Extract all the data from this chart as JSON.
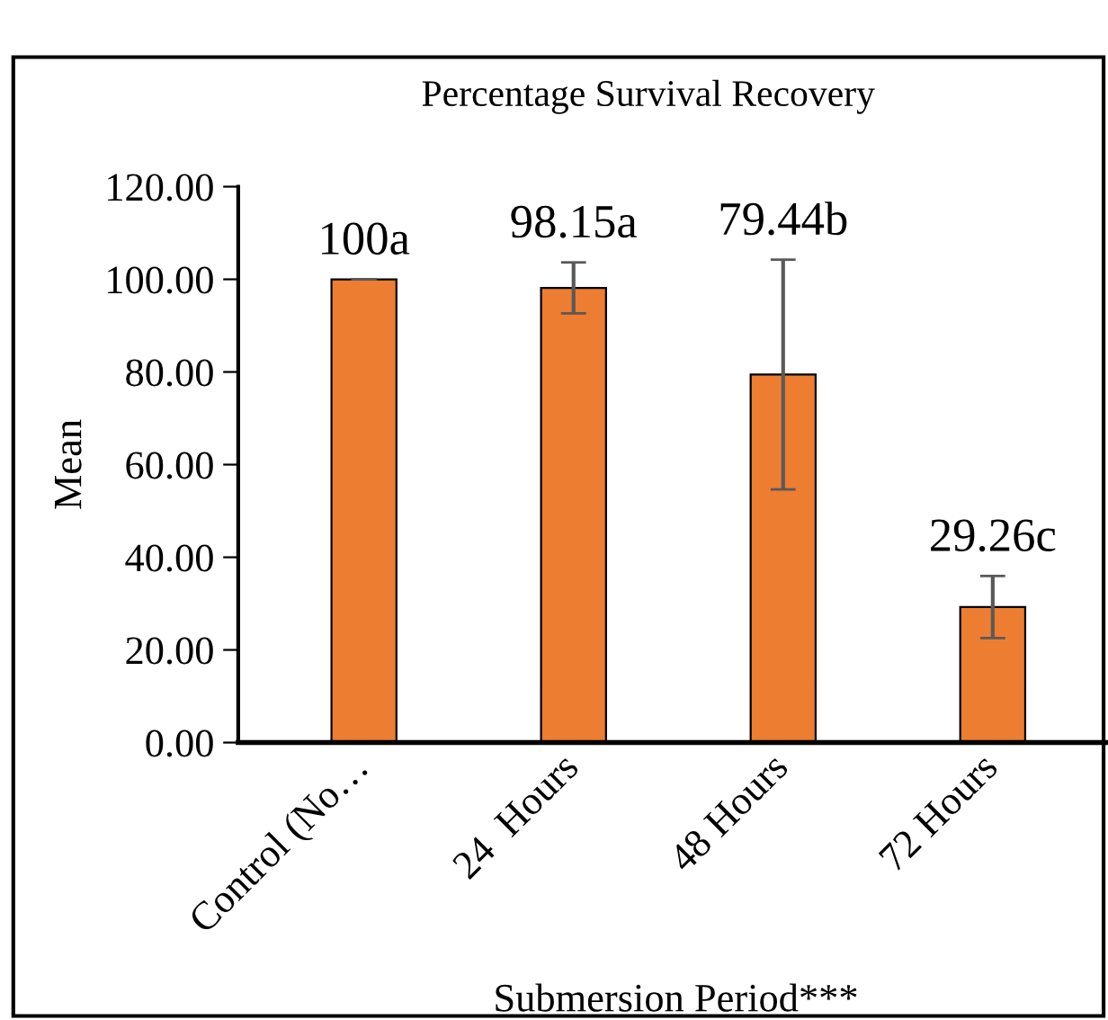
{
  "chart_data": {
    "type": "bar",
    "title": "Percentage Survival Recovery",
    "xlabel": "Submersion Period***",
    "ylabel": "Mean",
    "categories": [
      "Control (No…",
      "24  Hours",
      "48 Hours",
      "72 Hours"
    ],
    "values": [
      100,
      98.15,
      79.44,
      29.26
    ],
    "errors": [
      0,
      5.5,
      24.8,
      6.7
    ],
    "value_labels": [
      "100a",
      "98.15a",
      "79.44b",
      "29.26c"
    ],
    "color": "#ed7d31",
    "ylim": [
      0,
      120
    ],
    "yticks": [
      {
        "value": 0,
        "label": "0.00"
      },
      {
        "value": 20,
        "label": "20.00"
      },
      {
        "value": 40,
        "label": "40.00"
      },
      {
        "value": 60,
        "label": "60.00"
      },
      {
        "value": 80,
        "label": "80.00"
      },
      {
        "value": 100,
        "label": "100.00"
      },
      {
        "value": 120,
        "label": "120.00"
      }
    ],
    "grid": false,
    "legend": false
  }
}
